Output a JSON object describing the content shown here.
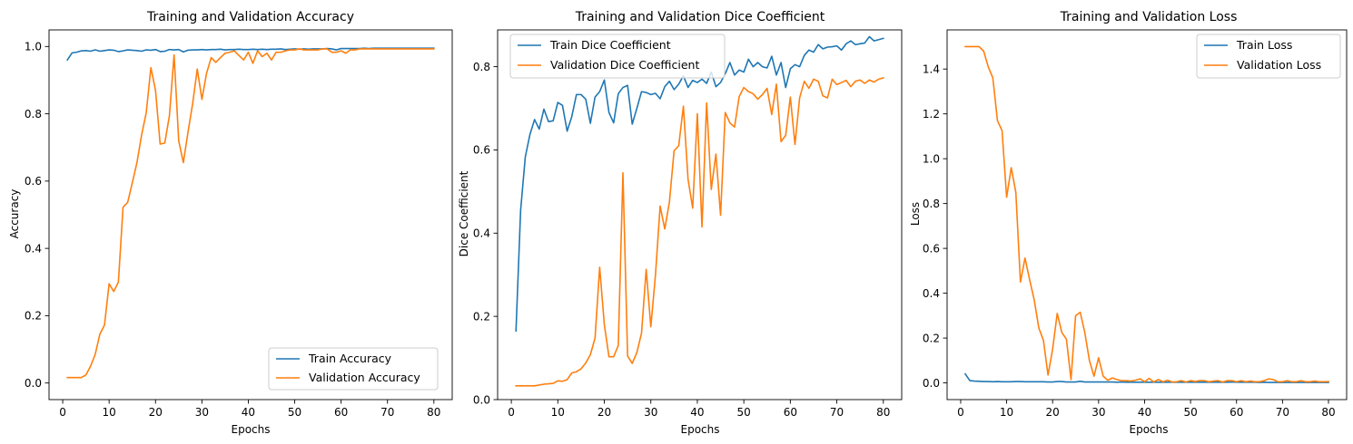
{
  "chart_data": [
    {
      "type": "line",
      "title": "Training and Validation Accuracy",
      "xlabel": "Epochs",
      "ylabel": "Accuracy",
      "xlim": [
        -2.95,
        83.95
      ],
      "ylim": [
        -0.04935,
        1.04935
      ],
      "xticks": [
        0,
        10,
        20,
        30,
        40,
        50,
        60,
        70,
        80
      ],
      "yticks": [
        0.0,
        0.2,
        0.4,
        0.6,
        0.8,
        1.0
      ],
      "ytick_decimals": 1,
      "legend_position": "lower-right",
      "grid": false,
      "series": [
        {
          "name": "Train Accuracy",
          "color": "#1f77b4",
          "x": [
            1,
            2,
            3,
            4,
            5,
            6,
            7,
            8,
            9,
            10,
            11,
            12,
            13,
            14,
            15,
            16,
            17,
            18,
            19,
            20,
            21,
            22,
            23,
            24,
            25,
            26,
            27,
            28,
            29,
            30,
            31,
            32,
            33,
            34,
            35,
            36,
            37,
            38,
            39,
            40,
            41,
            42,
            43,
            44,
            45,
            46,
            47,
            48,
            49,
            50,
            51,
            52,
            53,
            54,
            55,
            56,
            57,
            58,
            59,
            60,
            61,
            62,
            63,
            64,
            65,
            66,
            67,
            68,
            69,
            70,
            71,
            72,
            73,
            74,
            75,
            76,
            77,
            78,
            79,
            80
          ],
          "values": [
            0.96,
            0.981,
            0.983,
            0.987,
            0.988,
            0.986,
            0.99,
            0.986,
            0.988,
            0.99,
            0.989,
            0.985,
            0.987,
            0.99,
            0.989,
            0.988,
            0.986,
            0.99,
            0.989,
            0.991,
            0.985,
            0.986,
            0.991,
            0.99,
            0.991,
            0.984,
            0.989,
            0.99,
            0.99,
            0.991,
            0.99,
            0.991,
            0.991,
            0.992,
            0.99,
            0.991,
            0.991,
            0.992,
            0.991,
            0.991,
            0.992,
            0.991,
            0.992,
            0.991,
            0.992,
            0.992,
            0.993,
            0.991,
            0.992,
            0.993,
            0.992,
            0.993,
            0.992,
            0.993,
            0.993,
            0.993,
            0.994,
            0.993,
            0.99,
            0.994,
            0.994,
            0.994,
            0.994,
            0.994,
            0.995,
            0.994,
            0.995,
            0.995,
            0.995,
            0.995,
            0.995,
            0.995,
            0.995,
            0.995,
            0.995,
            0.995,
            0.995,
            0.995,
            0.995,
            0.995
          ]
        },
        {
          "name": "Validation Accuracy",
          "color": "#ff7f0e",
          "x": [
            1,
            2,
            3,
            4,
            5,
            6,
            7,
            8,
            9,
            10,
            11,
            12,
            13,
            14,
            15,
            16,
            17,
            18,
            19,
            20,
            21,
            22,
            23,
            24,
            25,
            26,
            27,
            28,
            29,
            30,
            31,
            32,
            33,
            34,
            35,
            36,
            37,
            38,
            39,
            40,
            41,
            42,
            43,
            44,
            45,
            46,
            47,
            48,
            49,
            50,
            51,
            52,
            53,
            54,
            55,
            56,
            57,
            58,
            59,
            60,
            61,
            62,
            63,
            64,
            65,
            66,
            67,
            68,
            69,
            70,
            71,
            72,
            73,
            74,
            75,
            76,
            77,
            78,
            79,
            80
          ],
          "values": [
            0.016,
            0.016,
            0.016,
            0.016,
            0.024,
            0.05,
            0.085,
            0.145,
            0.172,
            0.295,
            0.272,
            0.3,
            0.522,
            0.537,
            0.595,
            0.655,
            0.737,
            0.803,
            0.937,
            0.87,
            0.71,
            0.713,
            0.795,
            0.975,
            0.72,
            0.655,
            0.745,
            0.83,
            0.933,
            0.843,
            0.92,
            0.967,
            0.953,
            0.967,
            0.98,
            0.983,
            0.987,
            0.973,
            0.96,
            0.983,
            0.95,
            0.987,
            0.97,
            0.98,
            0.96,
            0.983,
            0.983,
            0.987,
            0.99,
            0.99,
            0.993,
            0.99,
            0.99,
            0.99,
            0.99,
            0.993,
            0.993,
            0.983,
            0.983,
            0.987,
            0.98,
            0.99,
            0.99,
            0.993,
            0.993,
            0.993,
            0.993,
            0.993,
            0.993,
            0.993,
            0.993,
            0.993,
            0.993,
            0.993,
            0.993,
            0.993,
            0.993,
            0.993,
            0.993,
            0.993
          ]
        }
      ]
    },
    {
      "type": "line",
      "title": "Training and Validation Dice Coefficient",
      "xlabel": "Epochs",
      "ylabel": "Dice Coefficient",
      "xlim": [
        -2.95,
        83.95
      ],
      "ylim": [
        0.0,
        0.8884
      ],
      "xticks": [
        0,
        10,
        20,
        30,
        40,
        50,
        60,
        70,
        80
      ],
      "yticks": [
        0.0,
        0.2,
        0.4,
        0.6,
        0.8
      ],
      "ytick_decimals": 1,
      "legend_position": "top-left",
      "grid": false,
      "series": [
        {
          "name": "Train Dice Coefficient",
          "color": "#1f77b4",
          "x": [
            1,
            2,
            3,
            4,
            5,
            6,
            7,
            8,
            9,
            10,
            11,
            12,
            13,
            14,
            15,
            16,
            17,
            18,
            19,
            20,
            21,
            22,
            23,
            24,
            25,
            26,
            27,
            28,
            29,
            30,
            31,
            32,
            33,
            34,
            35,
            36,
            37,
            38,
            39,
            40,
            41,
            42,
            43,
            44,
            45,
            46,
            47,
            48,
            49,
            50,
            51,
            52,
            53,
            54,
            55,
            56,
            57,
            58,
            59,
            60,
            61,
            62,
            63,
            64,
            65,
            66,
            67,
            68,
            69,
            70,
            71,
            72,
            73,
            74,
            75,
            76,
            77,
            78,
            79,
            80
          ],
          "values": [
            0.165,
            0.455,
            0.583,
            0.637,
            0.673,
            0.65,
            0.698,
            0.668,
            0.67,
            0.714,
            0.707,
            0.645,
            0.68,
            0.733,
            0.733,
            0.722,
            0.664,
            0.727,
            0.74,
            0.768,
            0.69,
            0.665,
            0.735,
            0.75,
            0.755,
            0.662,
            0.7,
            0.74,
            0.738,
            0.733,
            0.736,
            0.723,
            0.752,
            0.765,
            0.745,
            0.758,
            0.778,
            0.75,
            0.767,
            0.762,
            0.77,
            0.76,
            0.787,
            0.752,
            0.762,
            0.783,
            0.81,
            0.78,
            0.792,
            0.787,
            0.818,
            0.8,
            0.81,
            0.8,
            0.797,
            0.825,
            0.78,
            0.81,
            0.75,
            0.795,
            0.805,
            0.8,
            0.827,
            0.84,
            0.835,
            0.853,
            0.843,
            0.847,
            0.848,
            0.85,
            0.84,
            0.855,
            0.862,
            0.853,
            0.855,
            0.857,
            0.872,
            0.862,
            0.865,
            0.868
          ]
        },
        {
          "name": "Validation Dice Coefficient",
          "color": "#ff7f0e",
          "x": [
            1,
            2,
            3,
            4,
            5,
            6,
            7,
            8,
            9,
            10,
            11,
            12,
            13,
            14,
            15,
            16,
            17,
            18,
            19,
            20,
            21,
            22,
            23,
            24,
            25,
            26,
            27,
            28,
            29,
            30,
            31,
            32,
            33,
            34,
            35,
            36,
            37,
            38,
            39,
            40,
            41,
            42,
            43,
            44,
            45,
            46,
            47,
            48,
            49,
            50,
            51,
            52,
            53,
            54,
            55,
            56,
            57,
            58,
            59,
            60,
            61,
            62,
            63,
            64,
            65,
            66,
            67,
            68,
            69,
            70,
            71,
            72,
            73,
            74,
            75,
            76,
            77,
            78,
            79,
            80
          ],
          "values": [
            0.033,
            0.033,
            0.033,
            0.033,
            0.033,
            0.035,
            0.037,
            0.038,
            0.039,
            0.045,
            0.044,
            0.048,
            0.064,
            0.067,
            0.074,
            0.088,
            0.108,
            0.148,
            0.318,
            0.18,
            0.103,
            0.103,
            0.13,
            0.545,
            0.105,
            0.087,
            0.113,
            0.16,
            0.313,
            0.175,
            0.3,
            0.465,
            0.41,
            0.475,
            0.598,
            0.61,
            0.705,
            0.53,
            0.46,
            0.687,
            0.415,
            0.713,
            0.505,
            0.59,
            0.443,
            0.69,
            0.665,
            0.655,
            0.728,
            0.75,
            0.74,
            0.735,
            0.722,
            0.733,
            0.748,
            0.685,
            0.758,
            0.62,
            0.635,
            0.727,
            0.613,
            0.725,
            0.765,
            0.748,
            0.77,
            0.765,
            0.73,
            0.725,
            0.77,
            0.757,
            0.762,
            0.767,
            0.752,
            0.765,
            0.768,
            0.76,
            0.768,
            0.763,
            0.77,
            0.773
          ]
        }
      ]
    },
    {
      "type": "line",
      "title": "Training and Validation Loss",
      "xlabel": "Epochs",
      "ylabel": "Loss",
      "xlim": [
        -2.95,
        83.95
      ],
      "ylim": [
        -0.0745,
        1.5745
      ],
      "xticks": [
        0,
        10,
        20,
        30,
        40,
        50,
        60,
        70,
        80
      ],
      "yticks": [
        0.0,
        0.2,
        0.4,
        0.6,
        0.8,
        1.0,
        1.2,
        1.4
      ],
      "ytick_decimals": 1,
      "legend_position": "top-right",
      "grid": false,
      "series": [
        {
          "name": "Train Loss",
          "color": "#1f77b4",
          "x": [
            1,
            2,
            3,
            4,
            5,
            6,
            7,
            8,
            9,
            10,
            11,
            12,
            13,
            14,
            15,
            16,
            17,
            18,
            19,
            20,
            21,
            22,
            23,
            24,
            25,
            26,
            27,
            28,
            29,
            30,
            31,
            32,
            33,
            34,
            35,
            36,
            37,
            38,
            39,
            40,
            41,
            42,
            43,
            44,
            45,
            46,
            47,
            48,
            49,
            50,
            51,
            52,
            53,
            54,
            55,
            56,
            57,
            58,
            59,
            60,
            61,
            62,
            63,
            64,
            65,
            66,
            67,
            68,
            69,
            70,
            71,
            72,
            73,
            74,
            75,
            76,
            77,
            78,
            79,
            80
          ],
          "values": [
            0.04,
            0.01,
            0.008,
            0.007,
            0.006,
            0.006,
            0.005,
            0.006,
            0.005,
            0.005,
            0.005,
            0.006,
            0.006,
            0.005,
            0.005,
            0.005,
            0.005,
            0.005,
            0.004,
            0.004,
            0.006,
            0.006,
            0.004,
            0.004,
            0.004,
            0.007,
            0.004,
            0.004,
            0.004,
            0.004,
            0.004,
            0.004,
            0.004,
            0.003,
            0.004,
            0.003,
            0.003,
            0.003,
            0.003,
            0.003,
            0.003,
            0.003,
            0.003,
            0.003,
            0.003,
            0.003,
            0.003,
            0.003,
            0.003,
            0.003,
            0.003,
            0.003,
            0.003,
            0.003,
            0.003,
            0.003,
            0.003,
            0.003,
            0.004,
            0.003,
            0.003,
            0.003,
            0.003,
            0.003,
            0.002,
            0.003,
            0.002,
            0.002,
            0.002,
            0.002,
            0.002,
            0.002,
            0.002,
            0.002,
            0.002,
            0.002,
            0.002,
            0.002,
            0.002,
            0.002
          ]
        },
        {
          "name": "Validation Loss",
          "color": "#ff7f0e",
          "x": [
            1,
            2,
            3,
            4,
            5,
            6,
            7,
            8,
            9,
            10,
            11,
            12,
            13,
            14,
            15,
            16,
            17,
            18,
            19,
            20,
            21,
            22,
            23,
            24,
            25,
            26,
            27,
            28,
            29,
            30,
            31,
            32,
            33,
            34,
            35,
            36,
            37,
            38,
            39,
            40,
            41,
            42,
            43,
            44,
            45,
            46,
            47,
            48,
            49,
            50,
            51,
            52,
            53,
            54,
            55,
            56,
            57,
            58,
            59,
            60,
            61,
            62,
            63,
            64,
            65,
            66,
            67,
            68,
            69,
            70,
            71,
            72,
            73,
            74,
            75,
            76,
            77,
            78,
            79,
            80
          ],
          "values": [
            1.5,
            1.5,
            1.5,
            1.5,
            1.48,
            1.41,
            1.36,
            1.17,
            1.125,
            0.828,
            0.96,
            0.85,
            0.45,
            0.557,
            0.46,
            0.37,
            0.245,
            0.19,
            0.035,
            0.15,
            0.31,
            0.225,
            0.195,
            0.015,
            0.3,
            0.315,
            0.225,
            0.1,
            0.03,
            0.112,
            0.03,
            0.012,
            0.022,
            0.015,
            0.01,
            0.01,
            0.008,
            0.012,
            0.018,
            0.005,
            0.02,
            0.004,
            0.015,
            0.005,
            0.012,
            0.004,
            0.005,
            0.01,
            0.004,
            0.01,
            0.006,
            0.01,
            0.01,
            0.005,
            0.008,
            0.01,
            0.004,
            0.01,
            0.01,
            0.005,
            0.01,
            0.005,
            0.008,
            0.005,
            0.005,
            0.01,
            0.018,
            0.015,
            0.005,
            0.005,
            0.01,
            0.005,
            0.005,
            0.01,
            0.005,
            0.005,
            0.008,
            0.005,
            0.005,
            0.006
          ]
        }
      ]
    }
  ]
}
